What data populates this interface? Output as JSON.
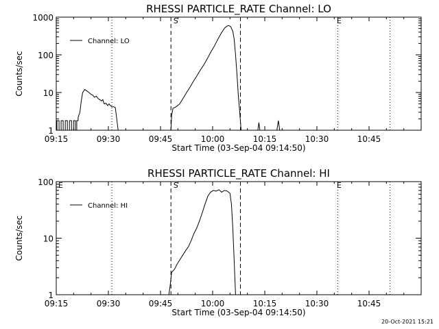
{
  "footer": {
    "timestamp": "20-Oct-2021 15:21"
  },
  "chart_data": [
    {
      "type": "line",
      "title": "RHESSI PARTICLE_RATE Channel: LO",
      "xlabel": "Start Time (03-Sep-04 09:14:50)",
      "ylabel": "Counts/sec",
      "y_scale": "log",
      "xlim_minutes": [
        0,
        105
      ],
      "ylim": [
        1,
        1000
      ],
      "x_ticks": [
        {
          "m": 0,
          "label": "09:15"
        },
        {
          "m": 15,
          "label": "09:30"
        },
        {
          "m": 30,
          "label": "09:45"
        },
        {
          "m": 45,
          "label": "10:00"
        },
        {
          "m": 60,
          "label": "10:15"
        },
        {
          "m": 75,
          "label": "10:30"
        },
        {
          "m": 90,
          "label": "10:45"
        }
      ],
      "y_ticks": [
        {
          "v": 1,
          "label": "1"
        },
        {
          "v": 10,
          "label": "10"
        },
        {
          "v": 100,
          "label": "100"
        },
        {
          "v": 1000,
          "label": "1000"
        }
      ],
      "legend": {
        "position": "top-left",
        "entries": [
          "Channel: LO"
        ]
      },
      "vlines_dotted": [
        16,
        81,
        96
      ],
      "vlines_dashed": [
        33,
        53
      ],
      "markers": [
        {
          "m": 33.5,
          "label": "S"
        },
        {
          "m": 80.5,
          "label": "E"
        }
      ],
      "series": [
        {
          "name": "Channel: LO",
          "points": [
            [
              0.2,
              1
            ],
            [
              0.2,
              1.8
            ],
            [
              0.8,
              1.8
            ],
            [
              0.8,
              1
            ],
            [
              1.4,
              1
            ],
            [
              1.4,
              1.8
            ],
            [
              2.0,
              1.8
            ],
            [
              2.0,
              1
            ],
            [
              2.6,
              1
            ],
            [
              2.6,
              1.8
            ],
            [
              3.2,
              1.8
            ],
            [
              3.2,
              1
            ],
            [
              3.8,
              1
            ],
            [
              3.8,
              1.8
            ],
            [
              4.4,
              1.8
            ],
            [
              4.4,
              1
            ],
            [
              5.0,
              1
            ],
            [
              5.0,
              1.8
            ],
            [
              5.5,
              1.8
            ],
            [
              5.5,
              1
            ],
            [
              5.9,
              1
            ],
            [
              5.9,
              1.8
            ],
            [
              6.3,
              1.8
            ],
            [
              6.3,
              2.2
            ],
            [
              6.8,
              3
            ],
            [
              7.2,
              6
            ],
            [
              7.6,
              10
            ],
            [
              8.2,
              12
            ],
            [
              8.8,
              11
            ],
            [
              9.4,
              10
            ],
            [
              10,
              9
            ],
            [
              10.5,
              8.5
            ],
            [
              11,
              7.5
            ],
            [
              11.5,
              8
            ],
            [
              12,
              7
            ],
            [
              12.5,
              6.5
            ],
            [
              13,
              6
            ],
            [
              13.4,
              6.5
            ],
            [
              13.8,
              5
            ],
            [
              14.3,
              5.2
            ],
            [
              14.8,
              4.5
            ],
            [
              15.2,
              5
            ],
            [
              15.6,
              4.5
            ],
            [
              16,
              4.2
            ],
            [
              16.5,
              4.2
            ],
            [
              17,
              4
            ],
            [
              17.4,
              2
            ],
            [
              17.8,
              1
            ],
            [
              33,
              1
            ],
            [
              33.2,
              2.5
            ],
            [
              33.6,
              3.8
            ],
            [
              34.5,
              4.2
            ],
            [
              35.5,
              5
            ],
            [
              36.5,
              7
            ],
            [
              37.5,
              10
            ],
            [
              38.5,
              14
            ],
            [
              39.5,
              20
            ],
            [
              40.5,
              28
            ],
            [
              41.5,
              40
            ],
            [
              42.5,
              55
            ],
            [
              43.5,
              80
            ],
            [
              44.5,
              120
            ],
            [
              45.5,
              170
            ],
            [
              46.5,
              260
            ],
            [
              47.5,
              380
            ],
            [
              48.5,
              520
            ],
            [
              49.2,
              580
            ],
            [
              49.6,
              600
            ],
            [
              50.2,
              560
            ],
            [
              50.8,
              420
            ],
            [
              51.2,
              260
            ],
            [
              51.6,
              100
            ],
            [
              52,
              30
            ],
            [
              52.4,
              8
            ],
            [
              52.8,
              3
            ],
            [
              53.2,
              1
            ],
            [
              58,
              1
            ],
            [
              58.3,
              1.6
            ],
            [
              58.6,
              1
            ],
            [
              63.5,
              1
            ],
            [
              63.9,
              1.8
            ],
            [
              64.3,
              1
            ]
          ]
        }
      ]
    },
    {
      "type": "line",
      "title": "RHESSI PARTICLE_RATE Channel: HI",
      "xlabel": "Start Time (03-Sep-04 09:14:50)",
      "ylabel": "Counts/sec",
      "y_scale": "log",
      "xlim_minutes": [
        0,
        105
      ],
      "ylim": [
        1,
        100
      ],
      "x_ticks": [
        {
          "m": 0,
          "label": "09:15"
        },
        {
          "m": 15,
          "label": "09:30"
        },
        {
          "m": 30,
          "label": "09:45"
        },
        {
          "m": 45,
          "label": "10:00"
        },
        {
          "m": 60,
          "label": "10:15"
        },
        {
          "m": 75,
          "label": "10:30"
        },
        {
          "m": 90,
          "label": "10:45"
        }
      ],
      "y_ticks": [
        {
          "v": 1,
          "label": "1"
        },
        {
          "v": 10,
          "label": "10"
        },
        {
          "v": 100,
          "label": "100"
        }
      ],
      "legend": {
        "position": "top-left",
        "entries": [
          "Channel: HI"
        ]
      },
      "vlines_dotted": [
        16,
        81,
        96
      ],
      "vlines_dashed": [
        33,
        53
      ],
      "markers": [
        {
          "m": 0.4,
          "label": "E"
        },
        {
          "m": 33.5,
          "label": "S"
        },
        {
          "m": 80.5,
          "label": "E"
        }
      ],
      "series": [
        {
          "name": "Channel: HI",
          "points": [
            [
              32.4,
              1
            ],
            [
              32.8,
              1.5
            ],
            [
              33.2,
              2.5
            ],
            [
              34,
              2.8
            ],
            [
              34.8,
              3.5
            ],
            [
              35.6,
              4.2
            ],
            [
              36.4,
              5
            ],
            [
              37.2,
              6
            ],
            [
              38,
              7
            ],
            [
              38.8,
              9
            ],
            [
              39.6,
              12
            ],
            [
              40.4,
              15
            ],
            [
              41.2,
              20
            ],
            [
              42,
              28
            ],
            [
              42.8,
              40
            ],
            [
              43.6,
              55
            ],
            [
              44.4,
              65
            ],
            [
              45.2,
              70
            ],
            [
              46,
              68
            ],
            [
              46.8,
              72
            ],
            [
              47.6,
              65
            ],
            [
              48.4,
              70
            ],
            [
              49.2,
              68
            ],
            [
              50,
              62
            ],
            [
              50.4,
              40
            ],
            [
              50.8,
              15
            ],
            [
              51.2,
              4
            ],
            [
              51.6,
              1
            ]
          ]
        }
      ]
    }
  ]
}
